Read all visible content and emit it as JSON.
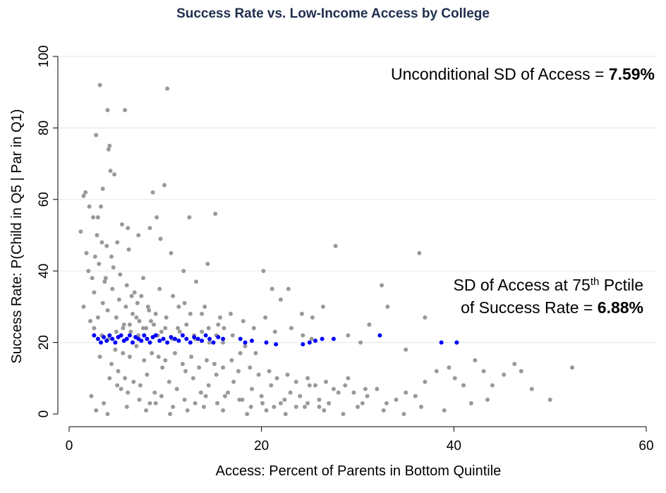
{
  "chart_data": {
    "type": "scatter",
    "title": "Success Rate vs. Low-Income Access by College",
    "xlabel": "Access: Percent of Parents in Bottom Quintile",
    "ylabel": "Success Rate: P(Child in Q5 | Par in Q1)",
    "xlim": [
      0,
      60
    ],
    "ylim": [
      0,
      100
    ],
    "xticks": [
      0,
      20,
      40,
      60
    ],
    "yticks": [
      0,
      20,
      40,
      60,
      80,
      100
    ],
    "grid": "horizontal",
    "colors": {
      "colleges": "#999999",
      "highlight": "#0000ff",
      "title": "#1f2d4e"
    },
    "annotations": {
      "unconditional": {
        "text": "Unconditional SD of Access = ",
        "value": "7.59%"
      },
      "conditional_line1": {
        "pre": "SD of Access at 75",
        "sup": "th",
        "post": " Pctile"
      },
      "conditional_line2": {
        "text": "of Success Rate = ",
        "value": "6.88%"
      }
    },
    "series": [
      {
        "points": [
          [
            1.2,
            51
          ],
          [
            1.5,
            61
          ],
          [
            1.7,
            62
          ],
          [
            2.1,
            58
          ],
          [
            2.5,
            55
          ],
          [
            2.8,
            78
          ],
          [
            3.2,
            92
          ],
          [
            4.0,
            85
          ],
          [
            5.8,
            85
          ],
          [
            10.2,
            91
          ],
          [
            4.2,
            75
          ],
          [
            4.1,
            74
          ],
          [
            4.3,
            68
          ],
          [
            4.7,
            67
          ],
          [
            9.9,
            64
          ],
          [
            8.7,
            62
          ],
          [
            9.1,
            55
          ],
          [
            12.5,
            55
          ],
          [
            15.2,
            56
          ],
          [
            3.5,
            63
          ],
          [
            1.8,
            45
          ],
          [
            2.0,
            40
          ],
          [
            1.5,
            30
          ],
          [
            2.6,
            34
          ],
          [
            3.0,
            27
          ],
          [
            3.7,
            37
          ],
          [
            4.4,
            44
          ],
          [
            5.0,
            48
          ],
          [
            5.5,
            53
          ],
          [
            6.2,
            46
          ],
          [
            6.5,
            33
          ],
          [
            7.1,
            31
          ],
          [
            7.7,
            38
          ],
          [
            8.3,
            29
          ],
          [
            9.4,
            35
          ],
          [
            10.1,
            27
          ],
          [
            10.8,
            33
          ],
          [
            11.3,
            24
          ],
          [
            12.0,
            31
          ],
          [
            13.1,
            21
          ],
          [
            13.8,
            28
          ],
          [
            14.6,
            20
          ],
          [
            15.5,
            25
          ],
          [
            16.1,
            24
          ],
          [
            17.0,
            22
          ],
          [
            17.8,
            17
          ],
          [
            18.3,
            19
          ],
          [
            19.4,
            17
          ],
          [
            20.2,
            40
          ],
          [
            21.1,
            35
          ],
          [
            22.0,
            32
          ],
          [
            22.8,
            35
          ],
          [
            24.2,
            28
          ],
          [
            25.3,
            27
          ],
          [
            26.4,
            30
          ],
          [
            27.7,
            47
          ],
          [
            29.0,
            22
          ],
          [
            30.3,
            20
          ],
          [
            31.2,
            25
          ],
          [
            32.5,
            36
          ],
          [
            33.1,
            30
          ],
          [
            35.0,
            18
          ],
          [
            36.4,
            45
          ],
          [
            37.0,
            27
          ],
          [
            38.2,
            12
          ],
          [
            39.5,
            13
          ],
          [
            40.1,
            10
          ],
          [
            41.0,
            8
          ],
          [
            42.2,
            15
          ],
          [
            43.1,
            12
          ],
          [
            44.0,
            8
          ],
          [
            45.2,
            11
          ],
          [
            46.3,
            14
          ],
          [
            47.0,
            12
          ],
          [
            48.1,
            7
          ],
          [
            50.0,
            4
          ],
          [
            52.3,
            13
          ],
          [
            41.8,
            3
          ],
          [
            43.5,
            4
          ],
          [
            39.0,
            1
          ],
          [
            3.2,
            16
          ],
          [
            4.4,
            14
          ],
          [
            5.1,
            12
          ],
          [
            5.8,
            10
          ],
          [
            6.7,
            9
          ],
          [
            7.4,
            8
          ],
          [
            8.1,
            11
          ],
          [
            8.9,
            6
          ],
          [
            9.7,
            13
          ],
          [
            10.4,
            9
          ],
          [
            11.2,
            7
          ],
          [
            12.1,
            12
          ],
          [
            12.9,
            10
          ],
          [
            13.7,
            6
          ],
          [
            14.5,
            8
          ],
          [
            15.3,
            11
          ],
          [
            16.2,
            5
          ],
          [
            17.1,
            9
          ],
          [
            18.0,
            4
          ],
          [
            19.0,
            7
          ],
          [
            20.0,
            5
          ],
          [
            21.0,
            8
          ],
          [
            22.0,
            3
          ],
          [
            23.0,
            6
          ],
          [
            24.0,
            5
          ],
          [
            25.0,
            8
          ],
          [
            26.0,
            4
          ],
          [
            27.0,
            3
          ],
          [
            28.0,
            6
          ],
          [
            29.0,
            10
          ],
          [
            30.0,
            2
          ],
          [
            31.0,
            5
          ],
          [
            32.0,
            7
          ],
          [
            33.0,
            3
          ],
          [
            34.0,
            4
          ],
          [
            35.0,
            6
          ],
          [
            36.0,
            5
          ],
          [
            37.0,
            9
          ],
          [
            2.8,
            1
          ],
          [
            4.0,
            0
          ],
          [
            6.0,
            2
          ],
          [
            8.0,
            1
          ],
          [
            9.0,
            3
          ],
          [
            10.5,
            0
          ],
          [
            12.3,
            1
          ],
          [
            14.0,
            2
          ],
          [
            16.0,
            1
          ],
          [
            18.5,
            0
          ],
          [
            20.5,
            1
          ],
          [
            22.5,
            0
          ],
          [
            24.5,
            2
          ],
          [
            26.5,
            1
          ],
          [
            28.5,
            0
          ],
          [
            30.5,
            3
          ],
          [
            32.7,
            1
          ],
          [
            34.8,
            0
          ],
          [
            36.6,
            2
          ],
          [
            2.3,
            5
          ],
          [
            3.6,
            3
          ],
          [
            5.4,
            7
          ],
          [
            4.8,
            18
          ],
          [
            5.6,
            17
          ],
          [
            6.3,
            16
          ],
          [
            7.0,
            19
          ],
          [
            7.8,
            15
          ],
          [
            8.6,
            17
          ],
          [
            9.3,
            16
          ],
          [
            10.0,
            15
          ],
          [
            11.0,
            17
          ],
          [
            11.8,
            14
          ],
          [
            12.7,
            16
          ],
          [
            13.5,
            13
          ],
          [
            14.3,
            15
          ],
          [
            15.1,
            14
          ],
          [
            16.0,
            13
          ],
          [
            16.9,
            15
          ],
          [
            17.6,
            12
          ],
          [
            18.8,
            13
          ],
          [
            19.7,
            11
          ],
          [
            20.8,
            12
          ],
          [
            21.6,
            10
          ],
          [
            22.7,
            11
          ],
          [
            23.6,
            9
          ],
          [
            24.8,
            10
          ],
          [
            25.6,
            8
          ],
          [
            26.7,
            9
          ],
          [
            27.5,
            7
          ],
          [
            28.7,
            8
          ],
          [
            29.6,
            6
          ],
          [
            30.8,
            7
          ],
          [
            3.1,
            42
          ],
          [
            3.8,
            38
          ],
          [
            4.5,
            35
          ],
          [
            5.2,
            32
          ],
          [
            5.9,
            30
          ],
          [
            6.6,
            28
          ],
          [
            7.3,
            26
          ],
          [
            8.0,
            24
          ],
          [
            8.8,
            25
          ],
          [
            9.6,
            23
          ],
          [
            3.4,
            48
          ],
          [
            2.9,
            50
          ],
          [
            3.9,
            47
          ],
          [
            4.6,
            41
          ],
          [
            5.3,
            39
          ],
          [
            6.0,
            36
          ],
          [
            6.8,
            34
          ],
          [
            7.5,
            33
          ],
          [
            8.2,
            30
          ],
          [
            9.0,
            28
          ],
          [
            3.0,
            55
          ],
          [
            3.3,
            58
          ],
          [
            2.7,
            44
          ],
          [
            2.4,
            38
          ],
          [
            3.5,
            31
          ],
          [
            4.0,
            29
          ],
          [
            4.9,
            27
          ],
          [
            5.7,
            25
          ],
          [
            6.4,
            23
          ],
          [
            7.2,
            22
          ],
          [
            2.2,
            26
          ],
          [
            2.6,
            24
          ],
          [
            3.4,
            22
          ],
          [
            4.1,
            21
          ],
          [
            4.9,
            23
          ],
          [
            5.6,
            24
          ],
          [
            6.3,
            25
          ],
          [
            7.0,
            27
          ],
          [
            7.7,
            24
          ],
          [
            8.5,
            26
          ],
          [
            9.2,
            22
          ],
          [
            10.0,
            24
          ],
          [
            10.7,
            21
          ],
          [
            11.5,
            23
          ],
          [
            12.2,
            25
          ],
          [
            13.0,
            22
          ],
          [
            13.8,
            23
          ],
          [
            14.5,
            24
          ],
          [
            15.3,
            22
          ],
          [
            16.0,
            20
          ],
          [
            10.6,
            45
          ],
          [
            11.9,
            40
          ],
          [
            13.2,
            37
          ],
          [
            14.4,
            42
          ],
          [
            9.5,
            49
          ],
          [
            8.4,
            52
          ],
          [
            7.2,
            50
          ],
          [
            6.1,
            52
          ],
          [
            11.4,
            30
          ],
          [
            12.6,
            28
          ],
          [
            14.1,
            30
          ],
          [
            15.7,
            27
          ],
          [
            16.8,
            28
          ],
          [
            18.1,
            26
          ],
          [
            19.2,
            24
          ],
          [
            20.4,
            27
          ],
          [
            21.4,
            23
          ],
          [
            23.1,
            24
          ],
          [
            24.3,
            22
          ],
          [
            25.2,
            21
          ],
          [
            4.2,
            10
          ],
          [
            5.0,
            8
          ],
          [
            6.1,
            6
          ],
          [
            7.3,
            4
          ],
          [
            8.4,
            3
          ],
          [
            9.6,
            5
          ],
          [
            10.8,
            2
          ],
          [
            12.0,
            4
          ],
          [
            13.1,
            3
          ],
          [
            14.2,
            5
          ],
          [
            15.4,
            3
          ],
          [
            16.5,
            6
          ],
          [
            17.7,
            4
          ],
          [
            18.9,
            2
          ],
          [
            20.1,
            3
          ],
          [
            21.3,
            2
          ],
          [
            22.4,
            4
          ],
          [
            23.6,
            2
          ],
          [
            24.8,
            3
          ],
          [
            26.0,
            2
          ]
        ]
      },
      {
        "points": [
          [
            2.6,
            22
          ],
          [
            3.0,
            21
          ],
          [
            3.3,
            20
          ],
          [
            3.6,
            21.5
          ],
          [
            3.9,
            20.5
          ],
          [
            4.2,
            22
          ],
          [
            4.5,
            21
          ],
          [
            4.8,
            20
          ],
          [
            5.1,
            21.5
          ],
          [
            5.4,
            22
          ],
          [
            5.7,
            20.5
          ],
          [
            6.0,
            21
          ],
          [
            6.3,
            22
          ],
          [
            6.6,
            20
          ],
          [
            6.9,
            21.5
          ],
          [
            7.2,
            21
          ],
          [
            7.5,
            20.5
          ],
          [
            7.8,
            22
          ],
          [
            8.1,
            21
          ],
          [
            8.4,
            20
          ],
          [
            8.7,
            21.5
          ],
          [
            9.0,
            22
          ],
          [
            9.4,
            20.5
          ],
          [
            9.8,
            21
          ],
          [
            10.2,
            20
          ],
          [
            10.6,
            21.5
          ],
          [
            11.0,
            21
          ],
          [
            11.4,
            20.5
          ],
          [
            11.8,
            22
          ],
          [
            12.2,
            21
          ],
          [
            12.6,
            20
          ],
          [
            13.0,
            21.5
          ],
          [
            13.4,
            21
          ],
          [
            13.8,
            20.5
          ],
          [
            14.2,
            22
          ],
          [
            14.6,
            21
          ],
          [
            15.0,
            20
          ],
          [
            15.5,
            21.5
          ],
          [
            16.0,
            21
          ],
          [
            17.8,
            21
          ],
          [
            18.3,
            20
          ],
          [
            19.0,
            20.5
          ],
          [
            20.5,
            20
          ],
          [
            21.5,
            19.5
          ],
          [
            24.3,
            19.5
          ],
          [
            25.0,
            20
          ],
          [
            25.6,
            20.5
          ],
          [
            26.3,
            21
          ],
          [
            27.5,
            21
          ],
          [
            32.3,
            22
          ],
          [
            38.7,
            20
          ],
          [
            40.3,
            20
          ]
        ]
      }
    ]
  }
}
